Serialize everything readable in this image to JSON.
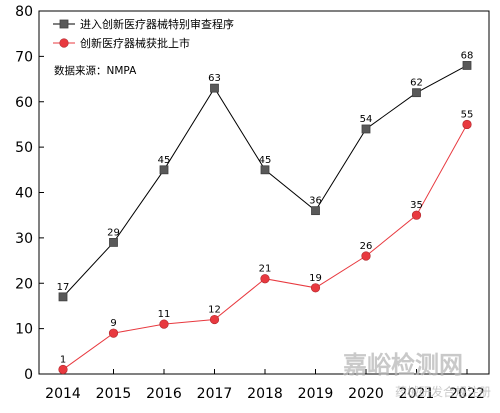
{
  "chart_data": {
    "type": "line",
    "title": "",
    "xlabel": "",
    "ylabel": "",
    "categories": [
      "2014",
      "2015",
      "2016",
      "2017",
      "2018",
      "2019",
      "2020",
      "2021",
      "2022"
    ],
    "ylim": [
      0,
      80
    ],
    "yticks": [
      0,
      10,
      20,
      30,
      40,
      50,
      60,
      70,
      80
    ],
    "grid": false,
    "legend_position": "top-left",
    "series": [
      {
        "name": "进入创新医疗器械特别审查程序",
        "values": [
          17,
          29,
          45,
          63,
          45,
          36,
          54,
          62,
          68
        ],
        "color": "#595959",
        "line_color": "#000000",
        "marker": "square"
      },
      {
        "name": "创新医疗器械获批上市",
        "values": [
          1,
          9,
          11,
          12,
          21,
          19,
          26,
          35,
          55
        ],
        "color": "#e8393f",
        "line_color": "#e8393f",
        "marker": "circle"
      }
    ],
    "annotation": "数据来源：NMPA"
  },
  "watermark": {
    "title": "嘉峪检测网",
    "subtitle": "药械研发合规注册"
  }
}
